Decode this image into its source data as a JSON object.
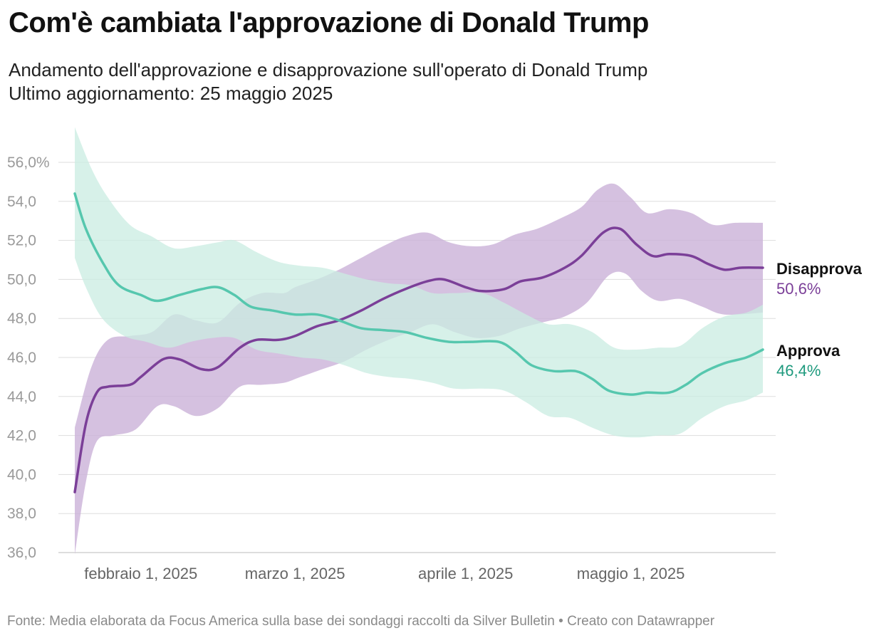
{
  "header": {
    "title": "Com'è cambiata l'approvazione di Donald Trump",
    "subtitle_line1": "Andamento dell'approvazione e disapprovazione sull'operato di Donald Trump",
    "subtitle_line2": "Ultimo aggiornamento: 25 maggio 2025"
  },
  "footer": {
    "text": "Fonte: Media elaborata da Focus America sulla base dei sondaggi raccolti da Silver Bulletin • Creato con Datawrapper"
  },
  "colors": {
    "approve_line": "#56c7ae",
    "approve_band": "#c9ece2",
    "disapprove_line": "#7b3f98",
    "disapprove_band": "#cbb1d8",
    "grid": "#dddddd",
    "approve_label": "#1f9a7e",
    "disapprove_label": "#7b3f98"
  },
  "chart_data": {
    "type": "line",
    "x_unit": "date",
    "y_ticks": [
      "56,0%",
      "54,0",
      "52,0",
      "50,0",
      "48,0",
      "46,0",
      "44,0",
      "42,0",
      "40,0",
      "38,0",
      "36,0"
    ],
    "y_tick_values": [
      56,
      54,
      52,
      50,
      48,
      46,
      44,
      42,
      40,
      38,
      36
    ],
    "ylim": [
      36,
      56
    ],
    "xlim": [
      "2025-01-20",
      "2025-05-25"
    ],
    "x_ticks": [
      {
        "date": "2025-02-01",
        "label": "febbraio 1, 2025"
      },
      {
        "date": "2025-03-01",
        "label": "marzo 1, 2025"
      },
      {
        "date": "2025-04-01",
        "label": "aprile 1, 2025"
      },
      {
        "date": "2025-05-01",
        "label": "maggio 1, 2025"
      }
    ],
    "grid": "horizontal",
    "legend": "end-of-line labels",
    "series": [
      {
        "name": "Disapprova",
        "value_label": "50,6%",
        "points": [
          [
            "2025-01-20",
            39.1
          ],
          [
            "2025-01-22",
            42.6
          ],
          [
            "2025-01-24",
            44.2
          ],
          [
            "2025-01-26",
            44.5
          ],
          [
            "2025-01-30",
            44.6
          ],
          [
            "2025-02-01",
            45.0
          ],
          [
            "2025-02-05",
            45.9
          ],
          [
            "2025-02-08",
            45.9
          ],
          [
            "2025-02-12",
            45.4
          ],
          [
            "2025-02-15",
            45.5
          ],
          [
            "2025-02-19",
            46.5
          ],
          [
            "2025-02-22",
            46.9
          ],
          [
            "2025-02-26",
            46.9
          ],
          [
            "2025-03-01",
            47.1
          ],
          [
            "2025-03-05",
            47.6
          ],
          [
            "2025-03-09",
            47.9
          ],
          [
            "2025-03-13",
            48.4
          ],
          [
            "2025-03-17",
            49.0
          ],
          [
            "2025-03-21",
            49.5
          ],
          [
            "2025-03-25",
            49.9
          ],
          [
            "2025-03-28",
            50.0
          ],
          [
            "2025-04-01",
            49.6
          ],
          [
            "2025-04-04",
            49.4
          ],
          [
            "2025-04-08",
            49.5
          ],
          [
            "2025-04-11",
            49.9
          ],
          [
            "2025-04-15",
            50.1
          ],
          [
            "2025-04-19",
            50.6
          ],
          [
            "2025-04-22",
            51.2
          ],
          [
            "2025-04-26",
            52.4
          ],
          [
            "2025-04-29",
            52.6
          ],
          [
            "2025-05-02",
            51.8
          ],
          [
            "2025-05-05",
            51.2
          ],
          [
            "2025-05-08",
            51.3
          ],
          [
            "2025-05-12",
            51.2
          ],
          [
            "2025-05-15",
            50.8
          ],
          [
            "2025-05-18",
            50.5
          ],
          [
            "2025-05-21",
            50.6
          ],
          [
            "2025-05-25",
            50.6
          ]
        ],
        "band_upper": [
          [
            "2025-01-20",
            42.4
          ],
          [
            "2025-01-23",
            45.5
          ],
          [
            "2025-01-26",
            46.9
          ],
          [
            "2025-01-30",
            47.1
          ],
          [
            "2025-02-03",
            47.3
          ],
          [
            "2025-02-07",
            48.2
          ],
          [
            "2025-02-11",
            47.9
          ],
          [
            "2025-02-15",
            47.8
          ],
          [
            "2025-02-19",
            48.8
          ],
          [
            "2025-02-23",
            49.3
          ],
          [
            "2025-02-27",
            49.3
          ],
          [
            "2025-03-01",
            49.6
          ],
          [
            "2025-03-05",
            50.0
          ],
          [
            "2025-03-09",
            50.5
          ],
          [
            "2025-03-13",
            51.1
          ],
          [
            "2025-03-17",
            51.7
          ],
          [
            "2025-03-21",
            52.2
          ],
          [
            "2025-03-25",
            52.4
          ],
          [
            "2025-03-29",
            51.9
          ],
          [
            "2025-04-02",
            51.7
          ],
          [
            "2025-04-06",
            51.8
          ],
          [
            "2025-04-10",
            52.3
          ],
          [
            "2025-04-14",
            52.6
          ],
          [
            "2025-04-18",
            53.1
          ],
          [
            "2025-04-22",
            53.7
          ],
          [
            "2025-04-25",
            54.6
          ],
          [
            "2025-04-28",
            54.9
          ],
          [
            "2025-05-01",
            54.2
          ],
          [
            "2025-05-04",
            53.4
          ],
          [
            "2025-05-08",
            53.6
          ],
          [
            "2025-05-12",
            53.4
          ],
          [
            "2025-05-16",
            52.8
          ],
          [
            "2025-05-20",
            52.9
          ],
          [
            "2025-05-25",
            52.9
          ]
        ],
        "band_lower": [
          [
            "2025-01-20",
            35.9
          ],
          [
            "2025-01-22",
            39.6
          ],
          [
            "2025-01-24",
            41.7
          ],
          [
            "2025-01-27",
            42.0
          ],
          [
            "2025-01-31",
            42.3
          ],
          [
            "2025-02-04",
            43.5
          ],
          [
            "2025-02-07",
            43.5
          ],
          [
            "2025-02-11",
            43.0
          ],
          [
            "2025-02-15",
            43.4
          ],
          [
            "2025-02-19",
            44.5
          ],
          [
            "2025-02-23",
            44.6
          ],
          [
            "2025-02-27",
            44.7
          ],
          [
            "2025-03-02",
            45.0
          ],
          [
            "2025-03-06",
            45.4
          ],
          [
            "2025-03-10",
            45.8
          ],
          [
            "2025-03-14",
            46.4
          ],
          [
            "2025-03-18",
            46.9
          ],
          [
            "2025-03-22",
            47.3
          ],
          [
            "2025-03-26",
            47.7
          ],
          [
            "2025-03-30",
            47.3
          ],
          [
            "2025-04-03",
            47.0
          ],
          [
            "2025-04-07",
            47.1
          ],
          [
            "2025-04-11",
            47.5
          ],
          [
            "2025-04-15",
            47.8
          ],
          [
            "2025-04-19",
            48.1
          ],
          [
            "2025-04-23",
            48.8
          ],
          [
            "2025-04-27",
            50.2
          ],
          [
            "2025-04-30",
            50.3
          ],
          [
            "2025-05-03",
            49.4
          ],
          [
            "2025-05-06",
            48.9
          ],
          [
            "2025-05-10",
            49.0
          ],
          [
            "2025-05-14",
            48.6
          ],
          [
            "2025-05-18",
            48.2
          ],
          [
            "2025-05-25",
            48.3
          ]
        ]
      },
      {
        "name": "Approva",
        "value_label": "46,4%",
        "points": [
          [
            "2025-01-20",
            54.4
          ],
          [
            "2025-01-22",
            52.6
          ],
          [
            "2025-01-25",
            50.9
          ],
          [
            "2025-01-28",
            49.7
          ],
          [
            "2025-02-01",
            49.2
          ],
          [
            "2025-02-04",
            48.9
          ],
          [
            "2025-02-08",
            49.2
          ],
          [
            "2025-02-12",
            49.5
          ],
          [
            "2025-02-15",
            49.6
          ],
          [
            "2025-02-18",
            49.2
          ],
          [
            "2025-02-21",
            48.6
          ],
          [
            "2025-02-25",
            48.4
          ],
          [
            "2025-03-01",
            48.2
          ],
          [
            "2025-03-05",
            48.2
          ],
          [
            "2025-03-09",
            47.9
          ],
          [
            "2025-03-13",
            47.5
          ],
          [
            "2025-03-17",
            47.4
          ],
          [
            "2025-03-21",
            47.3
          ],
          [
            "2025-03-25",
            47.0
          ],
          [
            "2025-03-29",
            46.8
          ],
          [
            "2025-04-02",
            46.8
          ],
          [
            "2025-04-07",
            46.8
          ],
          [
            "2025-04-10",
            46.3
          ],
          [
            "2025-04-13",
            45.6
          ],
          [
            "2025-04-17",
            45.3
          ],
          [
            "2025-04-21",
            45.3
          ],
          [
            "2025-04-24",
            44.9
          ],
          [
            "2025-04-27",
            44.3
          ],
          [
            "2025-05-01",
            44.1
          ],
          [
            "2025-05-04",
            44.2
          ],
          [
            "2025-05-08",
            44.2
          ],
          [
            "2025-05-11",
            44.6
          ],
          [
            "2025-05-14",
            45.2
          ],
          [
            "2025-05-18",
            45.7
          ],
          [
            "2025-05-22",
            46.0
          ],
          [
            "2025-05-25",
            46.4
          ]
        ],
        "band_upper": [
          [
            "2025-01-20",
            57.8
          ],
          [
            "2025-01-23",
            55.7
          ],
          [
            "2025-01-26",
            54.2
          ],
          [
            "2025-01-30",
            52.8
          ],
          [
            "2025-02-03",
            52.2
          ],
          [
            "2025-02-07",
            51.6
          ],
          [
            "2025-02-11",
            51.7
          ],
          [
            "2025-02-15",
            51.9
          ],
          [
            "2025-02-18",
            52.0
          ],
          [
            "2025-02-22",
            51.4
          ],
          [
            "2025-02-26",
            50.9
          ],
          [
            "2025-03-02",
            50.7
          ],
          [
            "2025-03-06",
            50.6
          ],
          [
            "2025-03-10",
            50.3
          ],
          [
            "2025-03-14",
            50.0
          ],
          [
            "2025-03-18",
            49.8
          ],
          [
            "2025-03-22",
            49.7
          ],
          [
            "2025-03-26",
            49.3
          ],
          [
            "2025-03-30",
            49.3
          ],
          [
            "2025-04-04",
            49.3
          ],
          [
            "2025-04-08",
            48.8
          ],
          [
            "2025-04-12",
            48.2
          ],
          [
            "2025-04-16",
            47.7
          ],
          [
            "2025-04-20",
            47.7
          ],
          [
            "2025-04-24",
            47.3
          ],
          [
            "2025-04-28",
            46.5
          ],
          [
            "2025-05-02",
            46.4
          ],
          [
            "2025-05-06",
            46.5
          ],
          [
            "2025-05-10",
            46.6
          ],
          [
            "2025-05-14",
            47.5
          ],
          [
            "2025-05-18",
            48.1
          ],
          [
            "2025-05-22",
            48.3
          ],
          [
            "2025-05-25",
            48.7
          ]
        ],
        "band_lower": [
          [
            "2025-01-20",
            51.1
          ],
          [
            "2025-01-22",
            49.6
          ],
          [
            "2025-01-25",
            48.0
          ],
          [
            "2025-01-29",
            47.1
          ],
          [
            "2025-02-02",
            46.8
          ],
          [
            "2025-02-06",
            46.5
          ],
          [
            "2025-02-10",
            46.8
          ],
          [
            "2025-02-14",
            47.0
          ],
          [
            "2025-02-18",
            47.0
          ],
          [
            "2025-02-22",
            46.4
          ],
          [
            "2025-02-26",
            46.2
          ],
          [
            "2025-03-02",
            46.0
          ],
          [
            "2025-03-06",
            45.9
          ],
          [
            "2025-03-10",
            45.6
          ],
          [
            "2025-03-14",
            45.2
          ],
          [
            "2025-03-18",
            45.0
          ],
          [
            "2025-03-22",
            44.9
          ],
          [
            "2025-03-26",
            44.7
          ],
          [
            "2025-03-30",
            44.4
          ],
          [
            "2025-04-04",
            44.4
          ],
          [
            "2025-04-08",
            44.3
          ],
          [
            "2025-04-12",
            43.7
          ],
          [
            "2025-04-16",
            43.0
          ],
          [
            "2025-04-20",
            42.9
          ],
          [
            "2025-04-24",
            42.4
          ],
          [
            "2025-04-28",
            42.0
          ],
          [
            "2025-05-02",
            41.9
          ],
          [
            "2025-05-06",
            42.0
          ],
          [
            "2025-05-10",
            42.1
          ],
          [
            "2025-05-14",
            42.9
          ],
          [
            "2025-05-18",
            43.5
          ],
          [
            "2025-05-22",
            43.8
          ],
          [
            "2025-05-25",
            44.2
          ]
        ]
      }
    ]
  }
}
